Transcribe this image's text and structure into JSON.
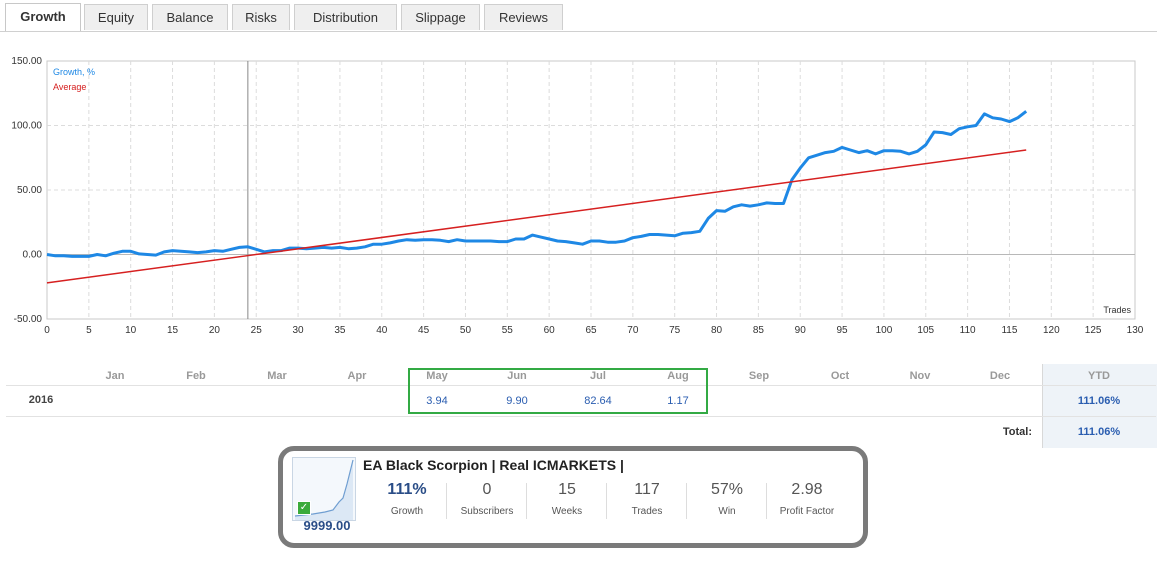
{
  "tabs": [
    {
      "label": "Growth",
      "active": true
    },
    {
      "label": "Equity",
      "active": false
    },
    {
      "label": "Balance",
      "active": false
    },
    {
      "label": "Risks",
      "active": false
    },
    {
      "label": "Distribution",
      "active": false
    },
    {
      "label": "Slippage",
      "active": false
    },
    {
      "label": "Reviews",
      "active": false
    }
  ],
  "chart_data": {
    "type": "line",
    "xlabel": "Trades",
    "ylabel": "",
    "xlim": [
      0,
      130
    ],
    "ylim": [
      -50,
      150
    ],
    "x_ticks": [
      0,
      5,
      10,
      15,
      20,
      25,
      30,
      35,
      40,
      45,
      50,
      55,
      60,
      65,
      70,
      75,
      80,
      85,
      90,
      95,
      100,
      105,
      110,
      115,
      120,
      125,
      130
    ],
    "y_ticks": [
      "150.00",
      "100.00",
      "50.00",
      "0.00",
      "-50.00"
    ],
    "grid": true,
    "legend_position": "top-left",
    "marker_x": 24,
    "series": [
      {
        "name": "Growth, %",
        "color": "#1e88e5",
        "x": [
          0,
          1,
          2,
          3,
          4,
          5,
          6,
          7,
          8,
          9,
          10,
          11,
          12,
          13,
          14,
          15,
          16,
          17,
          18,
          19,
          20,
          21,
          22,
          23,
          24,
          25,
          26,
          27,
          28,
          29,
          30,
          31,
          32,
          33,
          34,
          35,
          36,
          37,
          38,
          39,
          40,
          41,
          42,
          43,
          44,
          45,
          46,
          47,
          48,
          49,
          50,
          51,
          52,
          53,
          54,
          55,
          56,
          57,
          58,
          59,
          60,
          61,
          62,
          63,
          64,
          65,
          66,
          67,
          68,
          69,
          70,
          71,
          72,
          73,
          74,
          75,
          76,
          77,
          78,
          79,
          80,
          81,
          82,
          83,
          84,
          85,
          86,
          87,
          88,
          89,
          90,
          91,
          92,
          93,
          94,
          95,
          96,
          97,
          98,
          99,
          100,
          101,
          102,
          103,
          104,
          105,
          106,
          107,
          108,
          109,
          110,
          111,
          112,
          113,
          114,
          115,
          116,
          117
        ],
        "y": [
          0,
          -1,
          -1,
          -1.5,
          -1.5,
          -1.5,
          0,
          -1,
          1,
          2.5,
          2.5,
          0.5,
          0,
          -0.5,
          2,
          3,
          2.5,
          2,
          1.5,
          2,
          3,
          2.5,
          4,
          5.5,
          6,
          4,
          2,
          3,
          3,
          5,
          5,
          4.5,
          5,
          5.5,
          5,
          5.5,
          4.5,
          5,
          6,
          8,
          8,
          9,
          10.5,
          11.5,
          11,
          11.5,
          11.5,
          11,
          10,
          11.5,
          10.5,
          10.5,
          10.5,
          10.5,
          10,
          10,
          12,
          12,
          15,
          13.5,
          12,
          10.5,
          10,
          9,
          8,
          10.5,
          10.5,
          9.5,
          9.5,
          10.5,
          13,
          14,
          15.5,
          15.5,
          15,
          14.5,
          16.5,
          17,
          18,
          28,
          34,
          33.5,
          37,
          38.5,
          37.5,
          38.5,
          40,
          39.5,
          39.5,
          58,
          67,
          75,
          77,
          79,
          80,
          83,
          81,
          79,
          80.5,
          78,
          80.5,
          80.5,
          80,
          78,
          80,
          85,
          95,
          94.5,
          93,
          97.5,
          99,
          100,
          109,
          106,
          105,
          103,
          106,
          111
        ]
      },
      {
        "name": "Average",
        "color": "#d62020",
        "x": [
          0,
          117
        ],
        "y": [
          -22,
          81
        ]
      }
    ]
  },
  "monthly": {
    "months": [
      "Jan",
      "Feb",
      "Mar",
      "Apr",
      "May",
      "Jun",
      "Jul",
      "Aug",
      "Sep",
      "Oct",
      "Nov",
      "Dec"
    ],
    "ytd_label": "YTD",
    "year": "2016",
    "values": [
      "",
      "",
      "",
      "",
      "3.94",
      "9.90",
      "82.64",
      "1.17",
      "",
      "",
      "",
      ""
    ],
    "year_ytd": "111.06%",
    "total_label": "Total:",
    "total_value": "111.06%"
  },
  "card": {
    "title": "EA Black Scorpion | Real ICMARKETS |",
    "balance": "9999.00",
    "stats": [
      {
        "value": "111%",
        "label": "Growth"
      },
      {
        "value": "0",
        "label": "Subscribers"
      },
      {
        "value": "15",
        "label": "Weeks"
      },
      {
        "value": "117",
        "label": "Trades"
      },
      {
        "value": "57%",
        "label": "Win"
      },
      {
        "value": "2.98",
        "label": "Profit Factor"
      }
    ]
  }
}
